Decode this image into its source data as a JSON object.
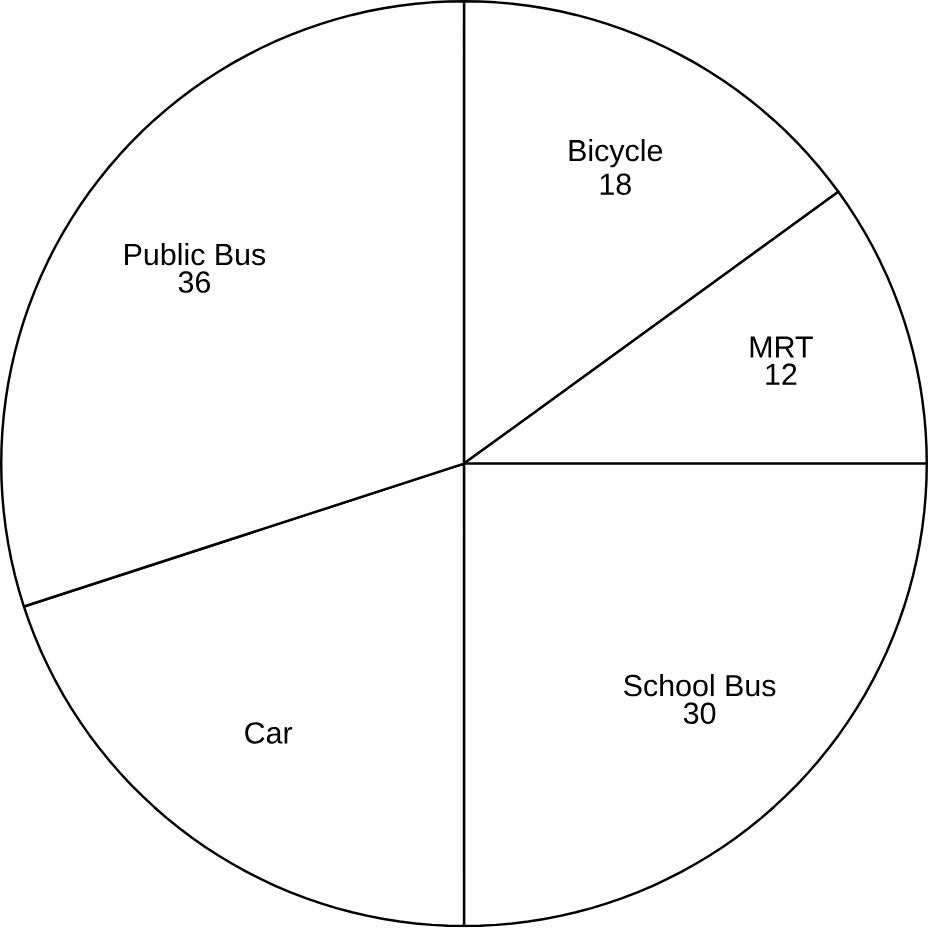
{
  "chart_data": {
    "type": "pie",
    "categories": [
      "Bicycle",
      "MRT",
      "School Bus",
      "Car",
      "Public Bus"
    ],
    "values": [
      18,
      12,
      30,
      24,
      36
    ],
    "value_labels": [
      "18",
      "12",
      "30",
      null,
      "36"
    ],
    "colors": [
      "#ffffff",
      "#ffffff",
      "#ffffff",
      "#ffffff",
      "#ffffff"
    ]
  }
}
